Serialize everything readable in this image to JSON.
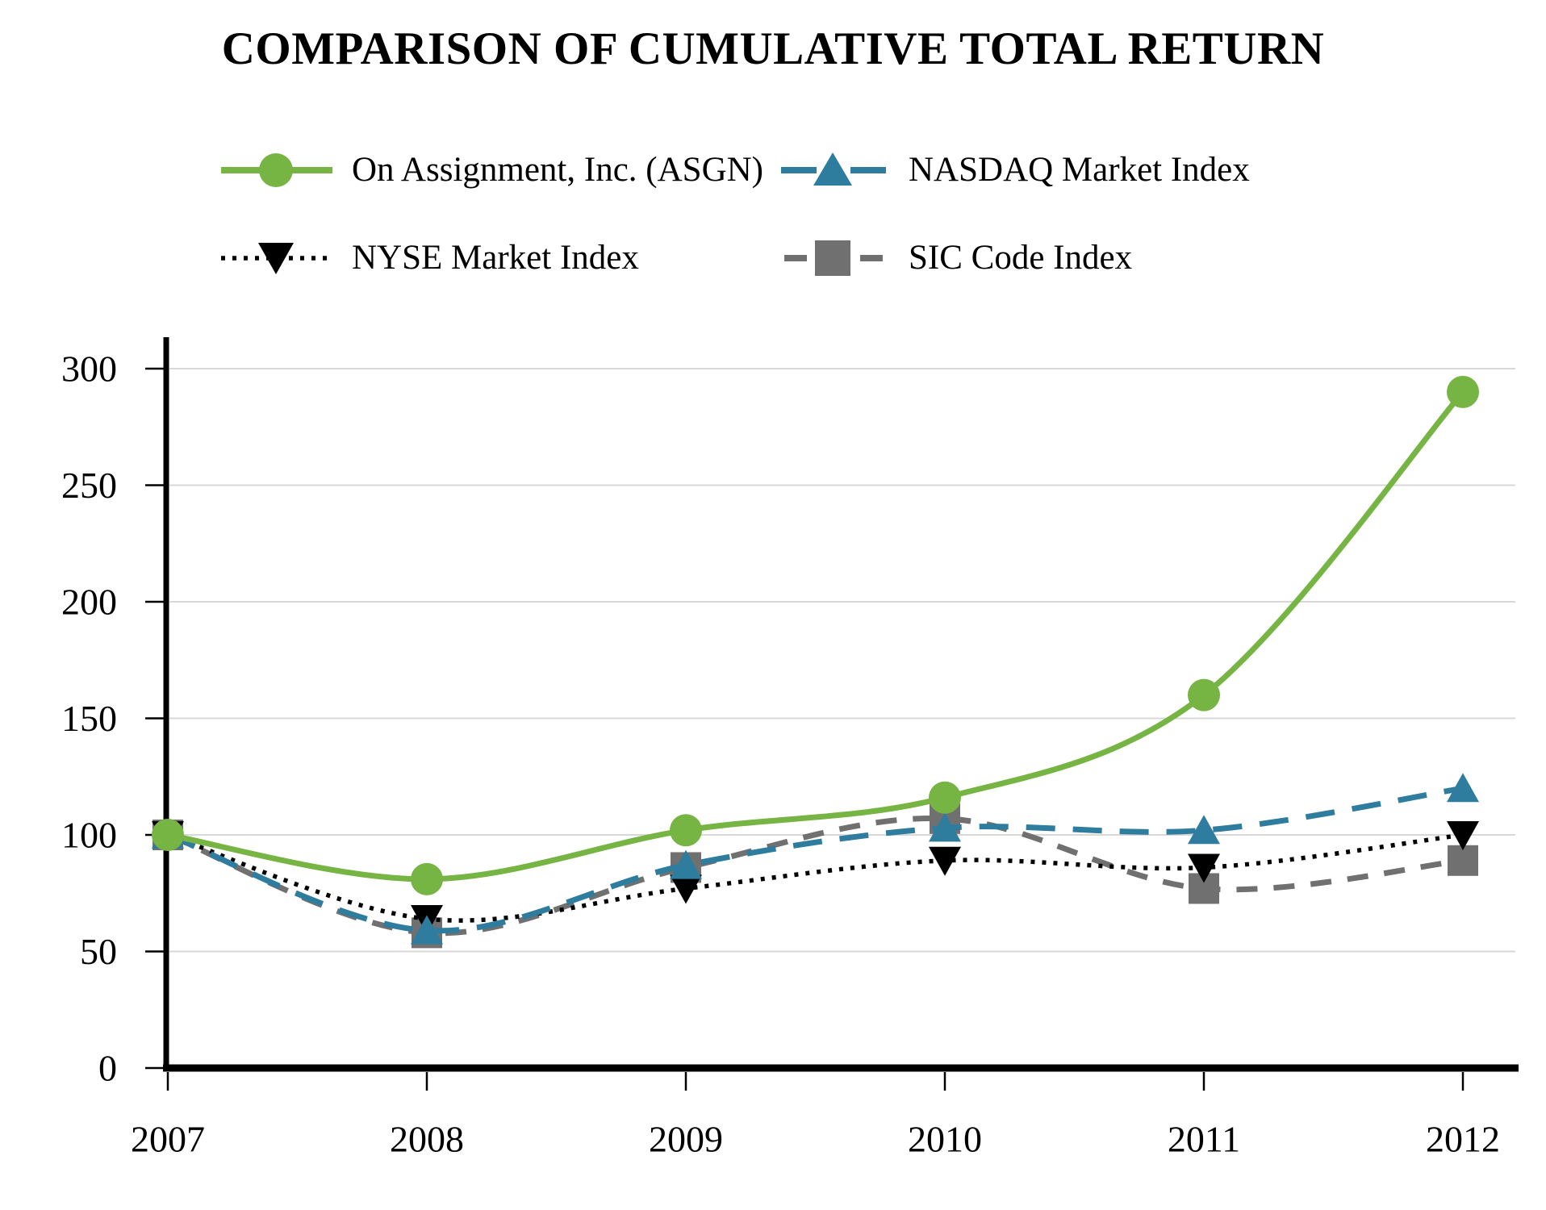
{
  "title": "COMPARISON OF CUMULATIVE TOTAL RETURN",
  "styles": {
    "background": "#FFFFFF",
    "axis_color": "#000000",
    "grid_color": "#D8D8D8",
    "text_color": "#000000"
  },
  "chart_data": {
    "type": "line",
    "title": "COMPARISON OF CUMULATIVE TOTAL RETURN",
    "xlabel": "",
    "ylabel": "",
    "categories": [
      "2007",
      "2008",
      "2009",
      "2010",
      "2011",
      "2012"
    ],
    "yticks": [
      0,
      50,
      100,
      150,
      200,
      250,
      300
    ],
    "ylim": [
      0,
      300
    ],
    "grid": "horizontal",
    "legend_position": "top",
    "series": [
      {
        "name": "On Assignment, Inc. (ASGN)",
        "color": "#76B543",
        "marker": "circle",
        "line_style": "solid",
        "values": [
          100,
          81,
          102,
          116,
          160,
          290
        ]
      },
      {
        "name": "NASDAQ Market Index",
        "color": "#2E7C9E",
        "marker": "triangle-up",
        "line_style": "long-dash",
        "values": [
          100,
          59,
          87,
          103,
          102,
          120
        ]
      },
      {
        "name": "NYSE Market Index",
        "color": "#000000",
        "marker": "triangle-down",
        "line_style": "dotted",
        "values": [
          100,
          64,
          77,
          89,
          86,
          100
        ]
      },
      {
        "name": "SIC Code Index",
        "color": "#707070",
        "marker": "square",
        "line_style": "dash",
        "values": [
          100,
          58,
          86,
          107,
          77,
          89
        ]
      }
    ]
  }
}
